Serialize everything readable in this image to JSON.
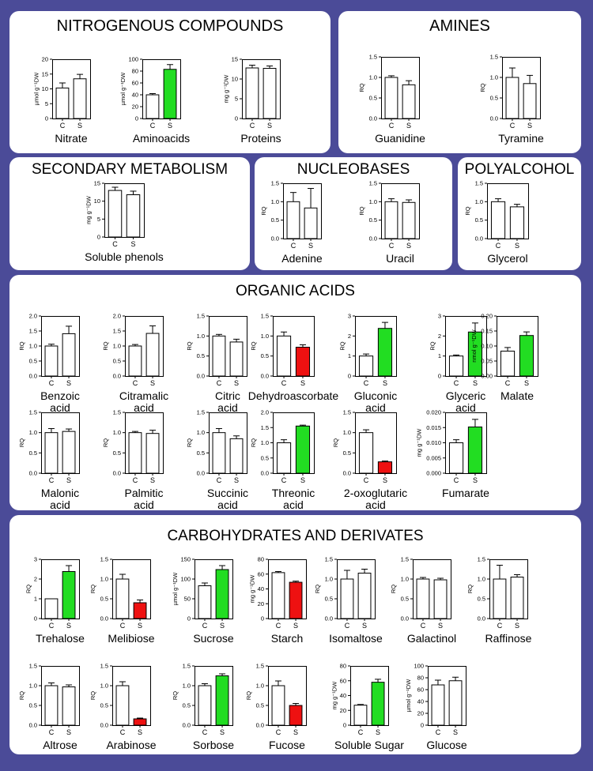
{
  "colors": {
    "background": "#4b4b98",
    "panel": "#ffffff",
    "increase": "#22dd22",
    "decrease": "#ee1111",
    "unchanged": "#ffffff"
  },
  "panels": {
    "nitro": {
      "title": "NITROGENOUS COMPOUNDS"
    },
    "amines": {
      "title": "AMINES"
    },
    "secondary": {
      "title": "SECONDARY METABOLISM"
    },
    "nucleo": {
      "title": "NUCLEOBASES"
    },
    "poly": {
      "title": "POLYALCOHOL"
    },
    "organic": {
      "title": "ORGANIC ACIDS"
    },
    "carbo": {
      "title": "CARBOHYDRATES AND DERIVATES"
    }
  },
  "chart_data": [
    {
      "type": "bar",
      "panel": "nitro",
      "name": "Nitrate",
      "title": [
        "Nitrate"
      ],
      "ylabel": "µmol g⁻¹DW",
      "ylim": [
        0,
        20
      ],
      "ticks": [
        "0",
        "5",
        "10",
        "15",
        "20"
      ],
      "categories": [
        "C",
        "S"
      ],
      "values": [
        10.3,
        13.4
      ],
      "errors": [
        1.7,
        1.5
      ],
      "colors": [
        "#ffffff",
        "#ffffff"
      ]
    },
    {
      "type": "bar",
      "panel": "nitro",
      "name": "Aminoacids",
      "title": [
        "Aminoacids"
      ],
      "ylabel": "µmol g⁻¹DW",
      "ylim": [
        0,
        100
      ],
      "ticks": [
        "0",
        "20",
        "40",
        "60",
        "80",
        "100"
      ],
      "categories": [
        "C",
        "S"
      ],
      "values": [
        40,
        83
      ],
      "errors": [
        2,
        8
      ],
      "colors": [
        "#ffffff",
        "#22dd22"
      ]
    },
    {
      "type": "bar",
      "panel": "nitro",
      "name": "Proteins",
      "title": [
        "Proteins"
      ],
      "ylabel": "mg g⁻¹DW",
      "ylim": [
        0,
        15
      ],
      "ticks": [
        "0",
        "5",
        "10",
        "15"
      ],
      "categories": [
        "C",
        "S"
      ],
      "values": [
        12.8,
        12.7
      ],
      "errors": [
        0.7,
        0.6
      ],
      "colors": [
        "#ffffff",
        "#ffffff"
      ]
    },
    {
      "type": "bar",
      "panel": "amines",
      "name": "Guanidine",
      "title": [
        "Guanidine"
      ],
      "ylabel": "RQ",
      "ylim": [
        0,
        1.5
      ],
      "ticks": [
        "0.0",
        "0.5",
        "1.0",
        "1.5"
      ],
      "categories": [
        "C",
        "S"
      ],
      "values": [
        1.0,
        0.82
      ],
      "errors": [
        0.04,
        0.1
      ],
      "colors": [
        "#ffffff",
        "#ffffff"
      ]
    },
    {
      "type": "bar",
      "panel": "amines",
      "name": "Tyramine",
      "title": [
        "Tyramine"
      ],
      "ylabel": "RQ",
      "ylim": [
        0,
        1.5
      ],
      "ticks": [
        "0.0",
        "0.5",
        "1.0",
        "1.5"
      ],
      "categories": [
        "C",
        "S"
      ],
      "values": [
        1.0,
        0.85
      ],
      "errors": [
        0.23,
        0.2
      ],
      "colors": [
        "#ffffff",
        "#ffffff"
      ]
    },
    {
      "type": "bar",
      "panel": "secondary",
      "name": "Soluble phenols",
      "title": [
        "Soluble phenols"
      ],
      "ylabel": "mg g⁻¹DW",
      "ylim": [
        0,
        15
      ],
      "ticks": [
        "0",
        "5",
        "10",
        "15"
      ],
      "categories": [
        "C",
        "S"
      ],
      "values": [
        13,
        11.8
      ],
      "errors": [
        0.9,
        1
      ],
      "colors": [
        "#ffffff",
        "#ffffff"
      ]
    },
    {
      "type": "bar",
      "panel": "nucleo",
      "name": "Adenine",
      "title": [
        "Adenine"
      ],
      "ylabel": "RQ",
      "ylim": [
        0,
        1.5
      ],
      "ticks": [
        "0.0",
        "0.5",
        "1.0",
        "1.5"
      ],
      "categories": [
        "C",
        "S"
      ],
      "values": [
        1.0,
        0.83
      ],
      "errors": [
        0.25,
        0.53
      ],
      "colors": [
        "#ffffff",
        "#ffffff"
      ]
    },
    {
      "type": "bar",
      "panel": "nucleo",
      "name": "Uracil",
      "title": [
        "Uracil"
      ],
      "ylabel": "RQ",
      "ylim": [
        0,
        1.5
      ],
      "ticks": [
        "0.0",
        "0.5",
        "1.0",
        "1.5"
      ],
      "categories": [
        "C",
        "S"
      ],
      "values": [
        1.0,
        0.98
      ],
      "errors": [
        0.08,
        0.07
      ],
      "colors": [
        "#ffffff",
        "#ffffff"
      ]
    },
    {
      "type": "bar",
      "panel": "poly",
      "name": "Glycerol",
      "title": [
        "Glycerol"
      ],
      "ylabel": "RQ",
      "ylim": [
        0,
        1.5
      ],
      "ticks": [
        "0.0",
        "0.5",
        "1.0",
        "1.5"
      ],
      "categories": [
        "C",
        "S"
      ],
      "values": [
        1.0,
        0.86
      ],
      "errors": [
        0.08,
        0.07
      ],
      "colors": [
        "#ffffff",
        "#ffffff"
      ]
    },
    {
      "type": "bar",
      "panel": "organic",
      "name": "Benzoic acid",
      "title": [
        "Benzoic",
        "acid"
      ],
      "ylabel": "RQ",
      "ylim": [
        0,
        2
      ],
      "ticks": [
        "0.0",
        "0.5",
        "1.0",
        "1.5",
        "2.0"
      ],
      "categories": [
        "C",
        "S"
      ],
      "values": [
        1.0,
        1.41
      ],
      "errors": [
        0.06,
        0.25
      ],
      "colors": [
        "#ffffff",
        "#ffffff"
      ]
    },
    {
      "type": "bar",
      "panel": "organic",
      "name": "Citramalic acid",
      "title": [
        "Citramalic",
        "acid"
      ],
      "ylabel": "RQ",
      "ylim": [
        0,
        2
      ],
      "ticks": [
        "0.0",
        "0.5",
        "1.0",
        "1.5",
        "2.0"
      ],
      "categories": [
        "C",
        "S"
      ],
      "values": [
        1.0,
        1.42
      ],
      "errors": [
        0.05,
        0.25
      ],
      "colors": [
        "#ffffff",
        "#ffffff"
      ]
    },
    {
      "type": "bar",
      "panel": "organic",
      "name": "Citric acid",
      "title": [
        "Citric",
        "acid"
      ],
      "ylabel": "RQ",
      "ylim": [
        0,
        1.5
      ],
      "ticks": [
        "0.0",
        "0.5",
        "1.0",
        "1.5"
      ],
      "categories": [
        "C",
        "S"
      ],
      "values": [
        1.0,
        0.85
      ],
      "errors": [
        0.04,
        0.07
      ],
      "colors": [
        "#ffffff",
        "#ffffff"
      ]
    },
    {
      "type": "bar",
      "panel": "organic",
      "name": "Dehydroascorbate",
      "title": [
        "Dehydroascorbate"
      ],
      "ylabel": "RQ",
      "ylim": [
        0,
        1.5
      ],
      "ticks": [
        "0.0",
        "0.5",
        "1.0",
        "1.5"
      ],
      "categories": [
        "C",
        "S"
      ],
      "values": [
        1.0,
        0.72
      ],
      "errors": [
        0.1,
        0.06
      ],
      "colors": [
        "#ffffff",
        "#ee1111"
      ]
    },
    {
      "type": "bar",
      "panel": "organic",
      "name": "Gluconic acid",
      "title": [
        "Gluconic",
        "acid"
      ],
      "ylabel": "RQ",
      "ylim": [
        0,
        3
      ],
      "ticks": [
        "0",
        "1",
        "2",
        "3"
      ],
      "categories": [
        "C",
        "S"
      ],
      "values": [
        1.0,
        2.38
      ],
      "errors": [
        0.1,
        0.3
      ],
      "colors": [
        "#ffffff",
        "#22dd22"
      ]
    },
    {
      "type": "bar",
      "panel": "organic",
      "name": "Glyceric acid",
      "title": [
        "Glyceric",
        "acid"
      ],
      "ylabel": "RQ",
      "ylim": [
        0,
        3
      ],
      "ticks": [
        "0",
        "1",
        "2",
        "3"
      ],
      "categories": [
        "C",
        "S"
      ],
      "values": [
        1.0,
        2.2
      ],
      "errors": [
        0.05,
        0.45
      ],
      "colors": [
        "#ffffff",
        "#22dd22"
      ]
    },
    {
      "type": "bar",
      "panel": "organic",
      "name": "Malate",
      "title": [
        "Malate"
      ],
      "ylabel": "nmol g⁻¹DW",
      "ylim": [
        0,
        0.2
      ],
      "ticks": [
        "0.00",
        "0.05",
        "0.10",
        "0.15",
        "0.20"
      ],
      "categories": [
        "C",
        "S"
      ],
      "values": [
        0.083,
        0.135
      ],
      "errors": [
        0.012,
        0.012
      ],
      "colors": [
        "#ffffff",
        "#22dd22"
      ]
    },
    {
      "type": "bar",
      "panel": "organic",
      "name": "Malonic acid",
      "title": [
        "Malonic",
        "acid"
      ],
      "ylabel": "RQ",
      "ylim": [
        0,
        1.5
      ],
      "ticks": [
        "0.0",
        "0.5",
        "1.0",
        "1.5"
      ],
      "categories": [
        "C",
        "S"
      ],
      "values": [
        1.0,
        1.03
      ],
      "errors": [
        0.1,
        0.06
      ],
      "colors": [
        "#ffffff",
        "#ffffff"
      ]
    },
    {
      "type": "bar",
      "panel": "organic",
      "name": "Palmitic acid",
      "title": [
        "Palmitic",
        "acid"
      ],
      "ylabel": "RQ",
      "ylim": [
        0,
        1.5
      ],
      "ticks": [
        "0.0",
        "0.5",
        "1.0",
        "1.5"
      ],
      "categories": [
        "C",
        "S"
      ],
      "values": [
        1.0,
        0.98
      ],
      "errors": [
        0.03,
        0.08
      ],
      "colors": [
        "#ffffff",
        "#ffffff"
      ]
    },
    {
      "type": "bar",
      "panel": "organic",
      "name": "Succinic acid",
      "title": [
        "Succinic",
        "acid"
      ],
      "ylabel": "RQ",
      "ylim": [
        0,
        1.5
      ],
      "ticks": [
        "0.0",
        "0.5",
        "1.0",
        "1.5"
      ],
      "categories": [
        "C",
        "S"
      ],
      "values": [
        1.0,
        0.85
      ],
      "errors": [
        0.1,
        0.07
      ],
      "colors": [
        "#ffffff",
        "#ffffff"
      ]
    },
    {
      "type": "bar",
      "panel": "organic",
      "name": "Threonic acid",
      "title": [
        "Threonic",
        "acid"
      ],
      "ylabel": "RQ",
      "ylim": [
        0,
        2
      ],
      "ticks": [
        "0.0",
        "0.5",
        "1.0",
        "1.5",
        "2.0"
      ],
      "categories": [
        "C",
        "S"
      ],
      "values": [
        1.0,
        1.55
      ],
      "errors": [
        0.1,
        0.03
      ],
      "colors": [
        "#ffffff",
        "#22dd22"
      ]
    },
    {
      "type": "bar",
      "panel": "organic",
      "name": "2-oxoglutaric acid",
      "title": [
        "2-oxoglutaric",
        "acid"
      ],
      "ylabel": "RQ",
      "ylim": [
        0,
        1.5
      ],
      "ticks": [
        "0.0",
        "0.5",
        "1.0",
        "1.5"
      ],
      "categories": [
        "C",
        "S"
      ],
      "values": [
        1.0,
        0.28
      ],
      "errors": [
        0.07,
        0.02
      ],
      "colors": [
        "#ffffff",
        "#ee1111"
      ]
    },
    {
      "type": "bar",
      "panel": "organic",
      "name": "Fumarate",
      "title": [
        "Fumarate"
      ],
      "ylabel": "mg g⁻¹DW",
      "ylim": [
        0,
        0.02
      ],
      "ticks": [
        "0.000",
        "0.005",
        "0.010",
        "0.015",
        "0.020"
      ],
      "categories": [
        "C",
        "S"
      ],
      "values": [
        0.01,
        0.0152
      ],
      "errors": [
        0.001,
        0.0025
      ],
      "colors": [
        "#ffffff",
        "#22dd22"
      ]
    },
    {
      "type": "bar",
      "panel": "carbo",
      "name": "Trehalose",
      "title": [
        "Trehalose"
      ],
      "ylabel": "RQ",
      "ylim": [
        0,
        3
      ],
      "ticks": [
        "0",
        "1",
        "2",
        "3"
      ],
      "categories": [
        "C",
        "S"
      ],
      "values": [
        1.0,
        2.38
      ],
      "errors": [
        0,
        0.3
      ],
      "colors": [
        "#ffffff",
        "#22dd22"
      ]
    },
    {
      "type": "bar",
      "panel": "carbo",
      "name": "Melibiose",
      "title": [
        "Melibiose"
      ],
      "ylabel": "RQ",
      "ylim": [
        0,
        1.5
      ],
      "ticks": [
        "0.0",
        "0.5",
        "1.0",
        "1.5"
      ],
      "categories": [
        "C",
        "S"
      ],
      "values": [
        1.0,
        0.4
      ],
      "errors": [
        0.12,
        0.07
      ],
      "colors": [
        "#ffffff",
        "#ee1111"
      ]
    },
    {
      "type": "bar",
      "panel": "carbo",
      "name": "Sucrose",
      "title": [
        "Sucrose"
      ],
      "ylabel": "µmol g⁻¹DW",
      "ylim": [
        0,
        150
      ],
      "ticks": [
        "0",
        "50",
        "100",
        "150"
      ],
      "categories": [
        "C",
        "S"
      ],
      "values": [
        83,
        124
      ],
      "errors": [
        7,
        10
      ],
      "colors": [
        "#ffffff",
        "#22dd22"
      ]
    },
    {
      "type": "bar",
      "panel": "carbo",
      "name": "Starch",
      "title": [
        "Starch"
      ],
      "ylabel": "mg g⁻¹DW",
      "ylim": [
        0,
        80
      ],
      "ticks": [
        "0",
        "20",
        "40",
        "60",
        "80"
      ],
      "categories": [
        "C",
        "S"
      ],
      "values": [
        62,
        49
      ],
      "errors": [
        1.5,
        1.5
      ],
      "colors": [
        "#ffffff",
        "#ee1111"
      ]
    },
    {
      "type": "bar",
      "panel": "carbo",
      "name": "Isomaltose",
      "title": [
        "Isomaltose"
      ],
      "ylabel": "RQ",
      "ylim": [
        0,
        1.5
      ],
      "ticks": [
        "0.0",
        "0.5",
        "1.0",
        "1.5"
      ],
      "categories": [
        "C",
        "S"
      ],
      "values": [
        1.0,
        1.15
      ],
      "errors": [
        0.22,
        0.1
      ],
      "colors": [
        "#ffffff",
        "#ffffff"
      ]
    },
    {
      "type": "bar",
      "panel": "carbo",
      "name": "Galactinol",
      "title": [
        "Galactinol"
      ],
      "ylabel": "RQ",
      "ylim": [
        0,
        1.5
      ],
      "ticks": [
        "0.0",
        "0.5",
        "1.0",
        "1.5"
      ],
      "categories": [
        "C",
        "S"
      ],
      "values": [
        1.0,
        0.98
      ],
      "errors": [
        0.04,
        0.04
      ],
      "colors": [
        "#ffffff",
        "#ffffff"
      ]
    },
    {
      "type": "bar",
      "panel": "carbo",
      "name": "Raffinose",
      "title": [
        "Raffinose"
      ],
      "ylabel": "RQ",
      "ylim": [
        0,
        1.5
      ],
      "ticks": [
        "0.0",
        "0.5",
        "1.0",
        "1.5"
      ],
      "categories": [
        "C",
        "S"
      ],
      "values": [
        1.0,
        1.05
      ],
      "errors": [
        0.35,
        0.06
      ],
      "colors": [
        "#ffffff",
        "#ffffff"
      ]
    },
    {
      "type": "bar",
      "panel": "carbo",
      "name": "Altrose",
      "title": [
        "Altrose"
      ],
      "ylabel": "RQ",
      "ylim": [
        0,
        1.5
      ],
      "ticks": [
        "0.0",
        "0.5",
        "1.0",
        "1.5"
      ],
      "categories": [
        "C",
        "S"
      ],
      "values": [
        1.0,
        0.97
      ],
      "errors": [
        0.07,
        0.05
      ],
      "colors": [
        "#ffffff",
        "#ffffff"
      ]
    },
    {
      "type": "bar",
      "panel": "carbo",
      "name": "Arabinose",
      "title": [
        "Arabinose"
      ],
      "ylabel": "RQ",
      "ylim": [
        0,
        1.5
      ],
      "ticks": [
        "0.0",
        "0.5",
        "1.0",
        "1.5"
      ],
      "categories": [
        "C",
        "S"
      ],
      "values": [
        1.0,
        0.16
      ],
      "errors": [
        0.1,
        0.02
      ],
      "colors": [
        "#ffffff",
        "#ee1111"
      ]
    },
    {
      "type": "bar",
      "panel": "carbo",
      "name": "Sorbose",
      "title": [
        "Sorbose"
      ],
      "ylabel": "RQ",
      "ylim": [
        0,
        1.5
      ],
      "ticks": [
        "0.0",
        "0.5",
        "1.0",
        "1.5"
      ],
      "categories": [
        "C",
        "S"
      ],
      "values": [
        1.0,
        1.25
      ],
      "errors": [
        0.05,
        0.05
      ],
      "colors": [
        "#ffffff",
        "#22dd22"
      ]
    },
    {
      "type": "bar",
      "panel": "carbo",
      "name": "Fucose",
      "title": [
        "Fucose"
      ],
      "ylabel": "RQ",
      "ylim": [
        0,
        1.5
      ],
      "ticks": [
        "0.0",
        "0.5",
        "1.0",
        "1.5"
      ],
      "categories": [
        "C",
        "S"
      ],
      "values": [
        1.0,
        0.5
      ],
      "errors": [
        0.12,
        0.05
      ],
      "colors": [
        "#ffffff",
        "#ee1111"
      ]
    },
    {
      "type": "bar",
      "panel": "carbo",
      "name": "Soluble Sugar",
      "title": [
        "Soluble Sugar"
      ],
      "ylabel": "mg g⁻¹DW",
      "ylim": [
        0,
        80
      ],
      "ticks": [
        "0",
        "20",
        "40",
        "60",
        "80"
      ],
      "categories": [
        "C",
        "S"
      ],
      "values": [
        27,
        58
      ],
      "errors": [
        1,
        4
      ],
      "colors": [
        "#ffffff",
        "#22dd22"
      ]
    },
    {
      "type": "bar",
      "panel": "carbo",
      "name": "Glucose",
      "title": [
        "Glucose"
      ],
      "ylabel": "µmol g⁻¹DW",
      "ylim": [
        0,
        100
      ],
      "ticks": [
        "0",
        "20",
        "40",
        "60",
        "80",
        "100"
      ],
      "categories": [
        "C",
        "S"
      ],
      "values": [
        68,
        75
      ],
      "errors": [
        8,
        6
      ],
      "colors": [
        "#ffffff",
        "#ffffff"
      ]
    }
  ]
}
